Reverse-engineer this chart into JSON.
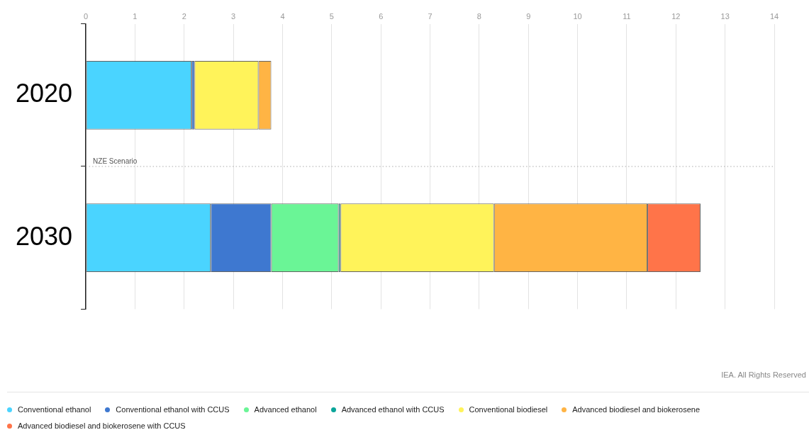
{
  "chart_data": {
    "type": "bar",
    "orientation": "horizontal",
    "stacked": true,
    "categories": [
      "2020",
      "2030"
    ],
    "series": [
      {
        "name": "Conventional ethanol",
        "color": "#4ad4ff",
        "values": [
          2.15,
          2.54
        ]
      },
      {
        "name": "Conventional ethanol with CCUS",
        "color": "#3e78d0",
        "values": [
          0.06,
          1.23
        ]
      },
      {
        "name": "Advanced ethanol",
        "color": "#6af596",
        "values": [
          0,
          1.37
        ]
      },
      {
        "name": "Advanced ethanol with CCUS",
        "color": "#0aa59a",
        "values": [
          0,
          0.04
        ]
      },
      {
        "name": "Conventional biodiesel",
        "color": "#fff35a",
        "values": [
          1.3,
          3.12
        ]
      },
      {
        "name": "Advanced biodiesel and biokerosene",
        "color": "#ffb444",
        "values": [
          0.26,
          3.12
        ]
      },
      {
        "name": "Advanced biodiesel and biokerosene with CCUS",
        "color": "#ff7449",
        "values": [
          0,
          1.08
        ]
      }
    ],
    "xlim": [
      0,
      14
    ],
    "xticks": [
      0,
      1,
      2,
      3,
      4,
      5,
      6,
      7,
      8,
      9,
      10,
      11,
      12,
      13,
      14
    ],
    "grid": "x",
    "legend": "bottom",
    "ref_lines": [
      {
        "axis": "y",
        "value": "2030",
        "label": "NZE Scenario",
        "line_style": "dotted",
        "color": "#aaaaaa"
      }
    ],
    "annotations": [
      "IEA. All Rights Reserved"
    ]
  }
}
